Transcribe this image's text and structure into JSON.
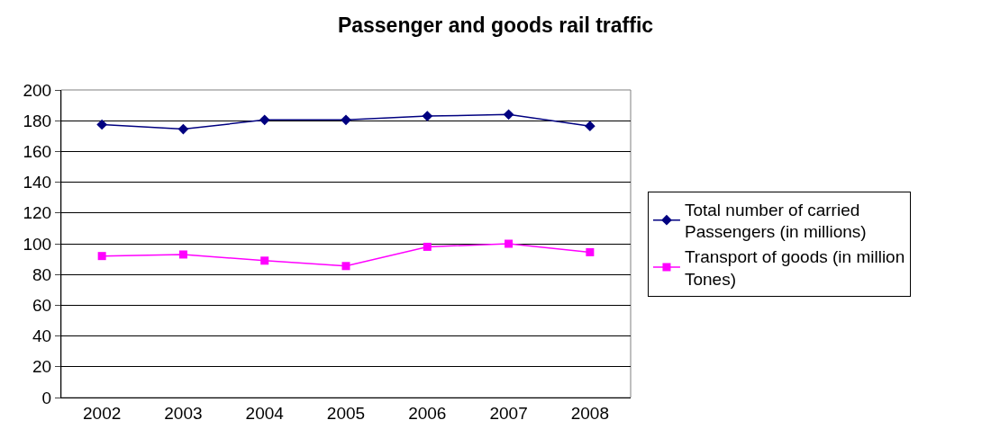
{
  "chart_data": {
    "type": "line",
    "title": "Passenger and goods rail traffic",
    "categories": [
      "2002",
      "2003",
      "2004",
      "2005",
      "2006",
      "2007",
      "2008"
    ],
    "series": [
      {
        "name": "Total number of carried Passengers (in millions)",
        "color": "#000080",
        "marker": "diamond",
        "values": [
          177.5,
          174.5,
          180.5,
          180.5,
          183,
          184,
          176.5
        ]
      },
      {
        "name": "Transport of goods (in million Tones)",
        "color": "#ff00ff",
        "marker": "square",
        "values": [
          92,
          93,
          89,
          85.5,
          98,
          100,
          94.5
        ]
      }
    ],
    "ylim": [
      0,
      200
    ],
    "yticks": [
      0,
      20,
      40,
      60,
      80,
      100,
      120,
      140,
      160,
      180,
      200
    ],
    "grid": "y",
    "legend": "right",
    "line_style": "solid"
  }
}
